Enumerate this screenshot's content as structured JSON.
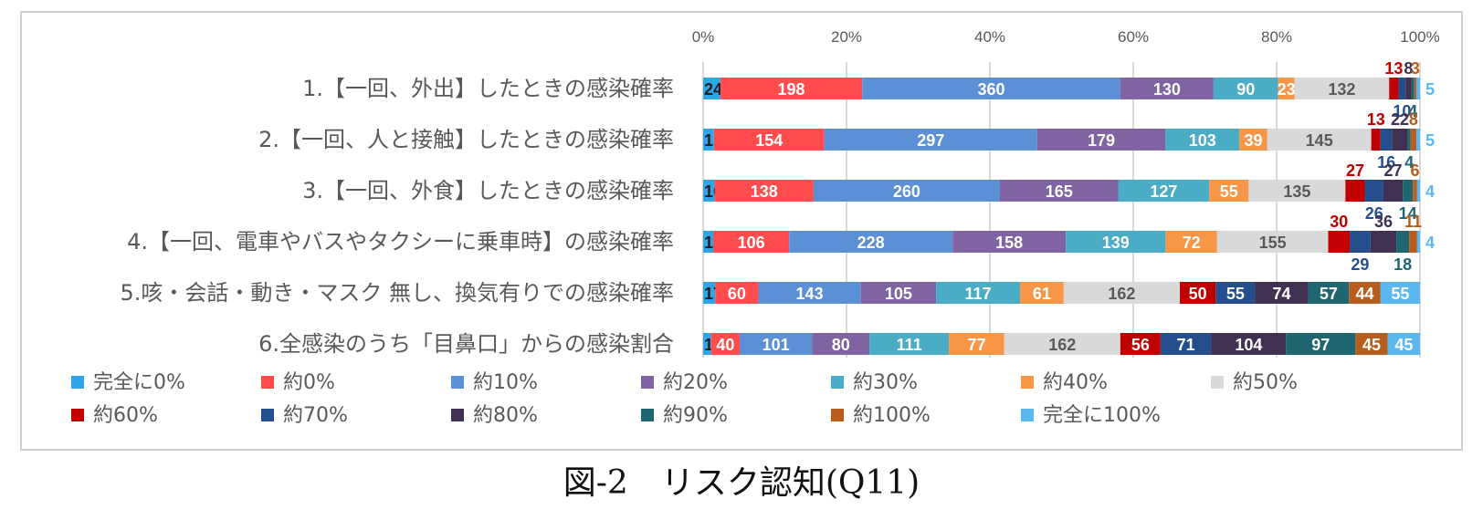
{
  "figure": {
    "caption": "図-2　リスク認知(Q11)"
  },
  "chart_data": {
    "type": "bar",
    "orientation": "horizontal",
    "stacked": "percent",
    "x_ticks": [
      "0%",
      "20%",
      "40%",
      "60%",
      "80%",
      "100%"
    ],
    "xlim": [
      0,
      100
    ],
    "grid": true,
    "legend_position": "bottom",
    "categories": [
      "1.【一回、外出】したときの感染確率",
      "2.【一回、人と接触】したときの感染確率",
      "3.【一回、外食】したときの感染確率",
      "4.【一回、電車やバスやタクシーに乗車時】の感染確率",
      "5.咳・会話・動き・マスク 無し、換気有りでの感染確率",
      "6.全感染のうち「目鼻口」からの感染割合"
    ],
    "series": [
      {
        "name": "完全に0%",
        "color": "#2FA4E7",
        "values": [
          24,
          15,
          16,
          14,
          17,
          11
        ]
      },
      {
        "name": "約0%",
        "color": "#FF4C4C",
        "values": [
          198,
          154,
          138,
          106,
          60,
          40
        ]
      },
      {
        "name": "約10%",
        "color": "#5B8FD6",
        "values": [
          360,
          297,
          260,
          228,
          143,
          101
        ]
      },
      {
        "name": "約20%",
        "color": "#8064A2",
        "values": [
          130,
          179,
          165,
          158,
          105,
          80
        ]
      },
      {
        "name": "約30%",
        "color": "#4BACC6",
        "values": [
          90,
          103,
          127,
          139,
          117,
          111
        ]
      },
      {
        "name": "約40%",
        "color": "#F79646",
        "values": [
          23,
          39,
          55,
          72,
          61,
          77
        ]
      },
      {
        "name": "約50%",
        "color": "#D9D9D9",
        "values": [
          132,
          145,
          135,
          155,
          162,
          162
        ]
      },
      {
        "name": "約60%",
        "color": "#C00000",
        "values": [
          13,
          13,
          27,
          30,
          50,
          56
        ]
      },
      {
        "name": "約70%",
        "color": "#254E8C",
        "values": [
          10,
          16,
          26,
          29,
          55,
          71
        ]
      },
      {
        "name": "約80%",
        "color": "#403152",
        "values": [
          8,
          22,
          27,
          36,
          74,
          104
        ]
      },
      {
        "name": "約90%",
        "color": "#1F6670",
        "values": [
          4,
          4,
          14,
          18,
          57,
          97
        ]
      },
      {
        "name": "約100%",
        "color": "#B75E1F",
        "values": [
          3,
          8,
          6,
          11,
          44,
          45
        ]
      },
      {
        "name": "完全に100%",
        "color": "#5BB8EE",
        "values": [
          5,
          5,
          4,
          4,
          55,
          45
        ]
      }
    ]
  }
}
